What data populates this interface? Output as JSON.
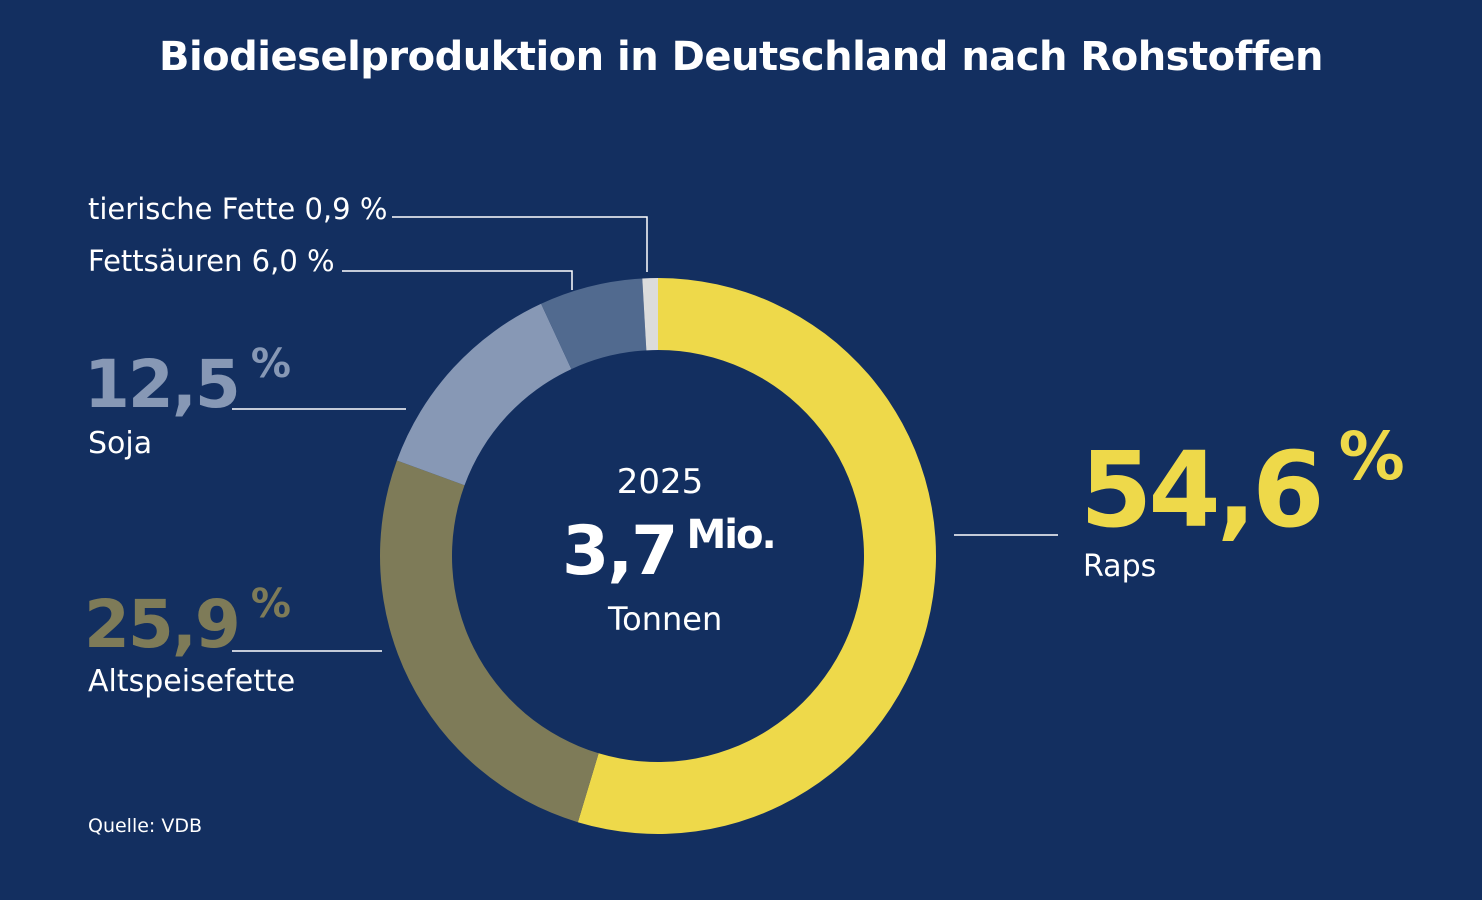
{
  "title": "Biodieselproduktion in Deutschland nach Rohstoffen",
  "center": {
    "year": "2025",
    "total_value": "3,7",
    "total_unit": "Mio.",
    "unit_label": "Tonnen"
  },
  "labels": {
    "tierische_fette": "tierische Fette 0,9 %",
    "fettsaeuren": "Fettsäuren 6,0 %",
    "soja_value": "12,5",
    "soja_unit": "%",
    "soja_name": "Soja",
    "altspeisefette_value": "25,9",
    "altspeisefette_unit": "%",
    "altspeisefette_name": "Altspeisefette",
    "raps_value": "54,6",
    "raps_unit": "%",
    "raps_name": "Raps"
  },
  "source": "Quelle: VDB",
  "chart_data": {
    "type": "pie",
    "title": "Biodieselproduktion in Deutschland nach Rohstoffen",
    "subtitle": "2025 – 3,7 Mio. Tonnen",
    "categories": [
      "Raps",
      "Altspeisefette",
      "Soja",
      "Fettsäuren",
      "tierische Fette"
    ],
    "values": [
      54.6,
      25.9,
      12.5,
      6.0,
      0.9
    ],
    "unit": "%",
    "colors": [
      "#eed94a",
      "#7e7b58",
      "#8798b5",
      "#516a8f",
      "#dcdcdc"
    ],
    "donut": true
  }
}
